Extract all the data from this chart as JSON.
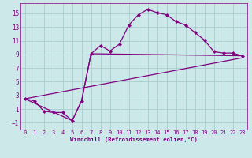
{
  "xlabel": "Windchill (Refroidissement éolien,°C)",
  "bg_color": "#cce8e8",
  "grid_color": "#aacccc",
  "line_color": "#800080",
  "xlim": [
    -0.5,
    23.5
  ],
  "ylim": [
    -2,
    16.5
  ],
  "xticks": [
    0,
    1,
    2,
    3,
    4,
    5,
    6,
    7,
    8,
    9,
    10,
    11,
    12,
    13,
    14,
    15,
    16,
    17,
    18,
    19,
    20,
    21,
    22,
    23
  ],
  "yticks": [
    -1,
    1,
    3,
    5,
    7,
    9,
    11,
    13,
    15
  ],
  "line1_x": [
    0,
    1,
    2,
    3,
    4,
    5,
    6,
    7,
    8,
    9,
    10,
    11,
    12,
    13,
    14,
    15,
    16,
    17,
    18,
    19,
    20,
    21,
    22,
    23
  ],
  "line1_y": [
    2.5,
    2.2,
    0.7,
    0.5,
    0.5,
    -0.7,
    2.2,
    9.1,
    10.3,
    9.5,
    10.5,
    13.3,
    14.8,
    15.6,
    15.1,
    14.8,
    13.8,
    13.3,
    12.2,
    11.1,
    9.4,
    9.2,
    9.2,
    8.8
  ],
  "line2_x": [
    0,
    23
  ],
  "line2_y": [
    2.5,
    8.5
  ],
  "line3_x": [
    0,
    5,
    6,
    7,
    23
  ],
  "line3_y": [
    2.5,
    -0.7,
    2.2,
    9.1,
    8.8
  ],
  "marker_size": 2.5,
  "line_width": 0.9
}
